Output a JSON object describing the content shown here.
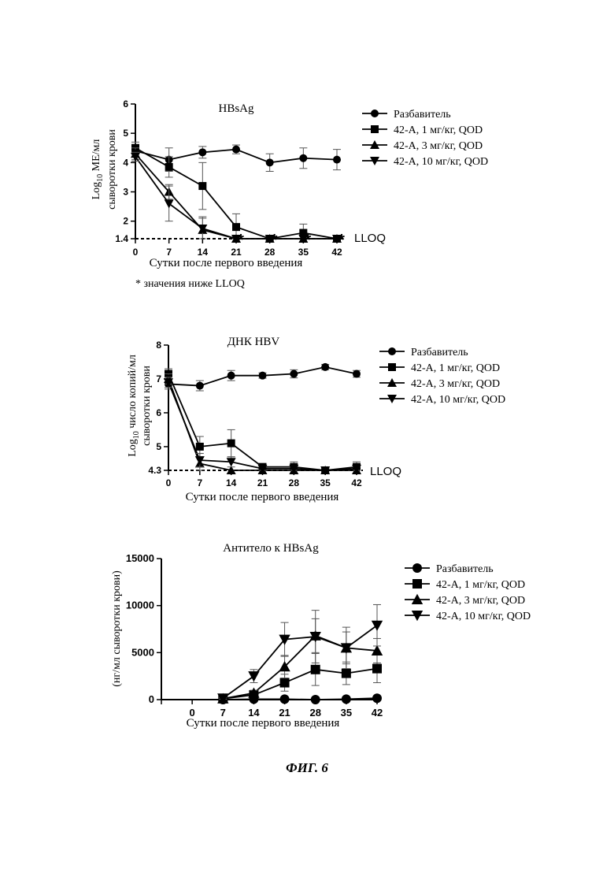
{
  "figure_label": "ФИГ. 6",
  "lloq_label": "LLOQ",
  "chart_data": [
    {
      "type": "line",
      "title": "HBsAg",
      "xlabel": "Сутки после первого введения",
      "ylabel_main": "Log",
      "ylabel_sub": "10",
      "ylabel_rest": " МЕ/мл",
      "ylabel_line2": "сыворотки крови",
      "footnote": "* значения ниже LLOQ",
      "x": [
        0,
        7,
        14,
        21,
        28,
        35,
        42
      ],
      "xlim": [
        0,
        42
      ],
      "ylim": [
        1.4,
        6
      ],
      "y_ticks": [
        1.4,
        2,
        3,
        4,
        5,
        6
      ],
      "y_tick_labels": [
        "1.4",
        "2",
        "3",
        "4",
        "5",
        "6"
      ],
      "lloq": 1.4,
      "series": [
        {
          "name": "Разбавитель",
          "marker": "circle",
          "values": [
            4.4,
            4.1,
            4.35,
            4.45,
            4.0,
            4.15,
            4.1
          ],
          "err": [
            0.2,
            0.4,
            0.2,
            0.15,
            0.3,
            0.35,
            0.35
          ]
        },
        {
          "name": "42-А, 1 мг/кг, QOD",
          "marker": "square",
          "values": [
            4.5,
            3.85,
            3.2,
            1.8,
            1.4,
            1.6,
            1.4
          ],
          "err": [
            0.2,
            0.35,
            0.8,
            0.45,
            0.1,
            0.3,
            0.05
          ]
        },
        {
          "name": "42-А, 3 мг/кг, QOD",
          "marker": "triangle-up",
          "values": [
            4.3,
            3.0,
            1.7,
            1.4,
            1.4,
            1.4,
            1.4
          ],
          "err": [
            0.2,
            0.25,
            0.4,
            0,
            0,
            0,
            0
          ]
        },
        {
          "name": "42-А, 10 мг/кг, QOD",
          "marker": "triangle-down",
          "values": [
            4.2,
            2.6,
            1.75,
            1.3,
            1.4,
            1.4,
            1.4
          ],
          "err": [
            0.15,
            0.6,
            0.4,
            0,
            0,
            0,
            0
          ]
        }
      ],
      "asterisks_x": [
        21,
        28,
        35,
        42
      ]
    },
    {
      "type": "line",
      "title": "ДНК HBV",
      "xlabel": "Сутки после первого введения",
      "ylabel_main": "Log",
      "ylabel_sub": "10",
      "ylabel_rest": " число копий/мл",
      "ylabel_line2": "сыворотки крови",
      "x": [
        0,
        7,
        14,
        21,
        28,
        35,
        42
      ],
      "xlim": [
        0,
        42
      ],
      "ylim": [
        4.3,
        8
      ],
      "y_ticks": [
        4.3,
        5,
        6,
        7,
        8
      ],
      "y_tick_labels": [
        "4.3",
        "5",
        "6",
        "7",
        "8"
      ],
      "lloq": 4.3,
      "series": [
        {
          "name": "Разбавитель",
          "marker": "circle",
          "values": [
            6.85,
            6.8,
            7.1,
            7.1,
            7.15,
            7.35,
            7.15
          ],
          "err": [
            0.15,
            0.15,
            0.15,
            0.08,
            0.12,
            0.08,
            0.1
          ]
        },
        {
          "name": "42-А, 1 мг/кг, QOD",
          "marker": "square",
          "values": [
            7.15,
            5.0,
            5.1,
            4.4,
            4.4,
            4.3,
            4.4
          ],
          "err": [
            0.15,
            0.3,
            0.4,
            0.1,
            0.15,
            0.05,
            0.15
          ]
        },
        {
          "name": "42-А, 3 мг/кг, QOD",
          "marker": "triangle-up",
          "values": [
            7.0,
            4.5,
            4.3,
            4.3,
            4.3,
            4.3,
            4.3
          ],
          "err": [
            0.15,
            0.2,
            0,
            0,
            0,
            0,
            0
          ]
        },
        {
          "name": "42-А, 10 мг/кг, QOD",
          "marker": "triangle-down",
          "values": [
            6.9,
            4.6,
            4.55,
            4.35,
            4.35,
            4.3,
            4.35
          ],
          "err": [
            0.15,
            0.2,
            0.15,
            0.05,
            0.05,
            0,
            0.05
          ]
        }
      ]
    },
    {
      "type": "line",
      "title": "Антитело к HBsAg",
      "xlabel": "Сутки после первого введения",
      "ylabel": "(нг/мл сыворотки крови)",
      "x": [
        0,
        7,
        14,
        21,
        28,
        35,
        42
      ],
      "x_tick_labels": [
        "0",
        "7",
        "14",
        "21",
        "28",
        "35",
        "42"
      ],
      "xlim": [
        -7,
        42
      ],
      "ylim": [
        0,
        15000
      ],
      "y_ticks": [
        0,
        5000,
        10000,
        15000
      ],
      "y_tick_labels": [
        "0",
        "5000",
        "10000",
        "15000"
      ],
      "series": [
        {
          "name": "Разбавитель",
          "marker": "circle",
          "x": [
            7,
            14,
            21,
            28,
            35,
            42
          ],
          "values": [
            0,
            50,
            50,
            0,
            50,
            150
          ],
          "err": [
            0,
            0,
            0,
            0,
            0,
            100
          ]
        },
        {
          "name": "42-А, 1 мг/кг, QOD",
          "marker": "square",
          "x": [
            7,
            14,
            21,
            28,
            35,
            42
          ],
          "values": [
            100,
            500,
            1800,
            3200,
            2800,
            3300
          ],
          "err": [
            100,
            300,
            900,
            1700,
            1200,
            1500
          ]
        },
        {
          "name": "42-А, 3 мг/кг, QOD",
          "marker": "triangle-up",
          "x": [
            7,
            14,
            21,
            28,
            35,
            42
          ],
          "values": [
            100,
            700,
            3500,
            6800,
            5500,
            5200
          ],
          "err": [
            100,
            300,
            1200,
            1800,
            1700,
            1300
          ]
        },
        {
          "name": "42-А, 10 мг/кг, QOD",
          "marker": "triangle-down",
          "x": [
            7,
            14,
            21,
            28,
            35,
            42
          ],
          "values": [
            150,
            2500,
            6400,
            6700,
            5500,
            7900
          ],
          "err": [
            100,
            700,
            1800,
            2800,
            2200,
            2200
          ]
        }
      ]
    }
  ]
}
